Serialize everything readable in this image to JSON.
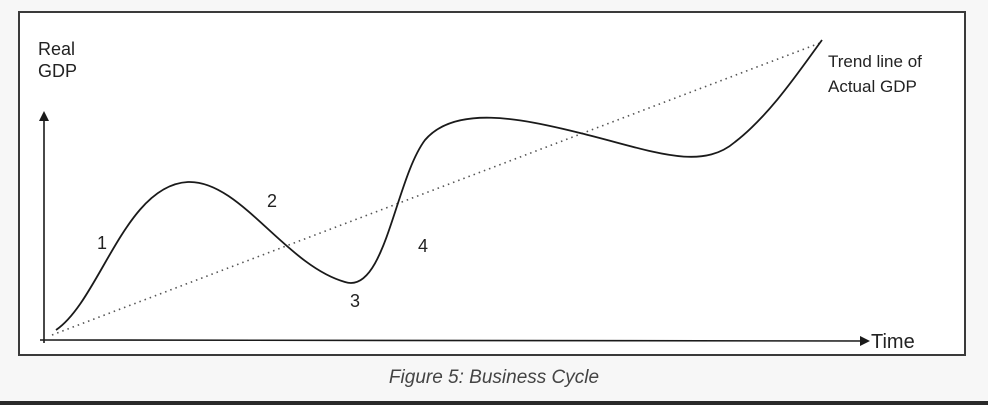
{
  "diagram": {
    "y_axis_label_line1": "Real",
    "y_axis_label_line2": "GDP",
    "x_axis_label": "Time",
    "trend_label_line1": "Trend line of",
    "trend_label_line2": "Actual GDP",
    "phases": [
      {
        "label": "1"
      },
      {
        "label": "2"
      },
      {
        "label": "3"
      },
      {
        "label": "4"
      }
    ]
  },
  "caption": "Figure 5: Business Cycle",
  "colors": {
    "line": "#1a1a1a",
    "frame": "#3a3a3a",
    "caption": "#444444"
  }
}
